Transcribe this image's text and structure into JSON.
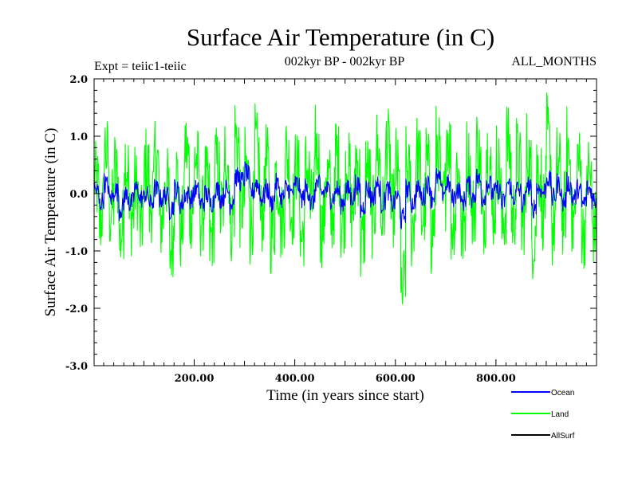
{
  "chart_data": {
    "type": "line",
    "title": "Surface Air Temperature (in C)",
    "subtitle_left": "Expt = teiic1-teiic",
    "subtitle_center": "002kyr BP - 002kyr BP",
    "subtitle_right": "ALL_MONTHS",
    "xlabel": "Time (in years since start)",
    "ylabel": "Surface Air Temperature (in C)",
    "xlim": [
      1,
      1000
    ],
    "ylim": [
      -3.0,
      2.0
    ],
    "x_ticks": [
      200,
      400,
      600,
      800
    ],
    "x_tick_labels": [
      "200.00",
      "400.00",
      "600.00",
      "800.00"
    ],
    "y_ticks": [
      -3.0,
      -2.0,
      -1.0,
      0.0,
      1.0,
      2.0
    ],
    "y_tick_labels": [
      "-3.0",
      "-2.0",
      "-1.0",
      "0.0",
      "1.0",
      "2.0"
    ],
    "grid": false,
    "legend_position": "bottom-right",
    "series": [
      {
        "name": "Land",
        "color": "#00ff00",
        "step": 10,
        "typical_range": [
          -0.9,
          0.9
        ],
        "extremes": {
          "min": -2.0,
          "max": 1.6
        },
        "values": [
          0.3,
          -0.6,
          0.9,
          -0.4,
          0.5,
          -0.9,
          0.7,
          -0.5,
          0.2,
          -0.7,
          0.6,
          -0.3,
          0.8,
          -0.6,
          0.4,
          -1.1,
          0.5,
          -0.8,
          0.9,
          -0.4,
          0.7,
          -0.5,
          0.3,
          -0.9,
          0.6,
          -0.4,
          0.8,
          -0.7,
          1.1,
          -0.3,
          0.5,
          -0.6,
          0.9,
          -0.5,
          0.7,
          -0.8,
          0.4,
          -0.6,
          0.8,
          -0.4,
          0.6,
          -0.9,
          0.5,
          -0.3,
          0.9,
          -0.7,
          0.4,
          -0.5,
          0.8,
          -0.6,
          0.6,
          -0.4,
          0.7,
          -1.0,
          0.5,
          -0.6,
          0.9,
          -0.5,
          1.0,
          -0.4,
          0.6,
          -2.0,
          0.5,
          -0.7,
          0.8,
          -0.5,
          0.6,
          -0.8,
          0.9,
          -0.4,
          1.2,
          -0.6,
          0.5,
          -0.8,
          0.7,
          -0.5,
          0.9,
          -0.6,
          0.8,
          -0.4,
          0.6,
          -0.7,
          1.0,
          -0.5,
          0.7,
          -0.6,
          0.8,
          -0.9,
          0.5,
          -0.4,
          1.1,
          -0.7,
          0.6,
          -0.5,
          0.9,
          -0.6,
          0.7,
          -0.8,
          0.5,
          -0.6
        ]
      },
      {
        "name": "Ocean",
        "color": "#0000ff",
        "step": 10,
        "typical_range": [
          -0.4,
          0.4
        ],
        "values": [
          0.1,
          -0.2,
          0.2,
          -0.1,
          0.1,
          -0.3,
          0.0,
          -0.2,
          0.1,
          -0.1,
          0.0,
          -0.2,
          0.1,
          -0.1,
          0.0,
          -0.3,
          0.1,
          -0.2,
          0.0,
          -0.1,
          0.1,
          -0.2,
          0.0,
          -0.2,
          0.1,
          -0.1,
          0.1,
          -0.2,
          0.3,
          0.2,
          0.4,
          0.0,
          0.2,
          -0.1,
          0.1,
          -0.2,
          0.2,
          -0.1,
          0.1,
          0.0,
          0.2,
          -0.1,
          0.1,
          -0.2,
          0.2,
          0.0,
          0.1,
          -0.1,
          0.1,
          -0.2,
          0.1,
          -0.1,
          0.2,
          -0.3,
          0.1,
          -0.1,
          0.2,
          -0.2,
          0.1,
          -0.2,
          0.0,
          -0.5,
          0.1,
          -0.2,
          0.1,
          -0.1,
          0.2,
          -0.1,
          0.3,
          0.0,
          0.2,
          -0.1,
          0.1,
          -0.2,
          0.2,
          -0.1,
          0.3,
          -0.1,
          0.2,
          0.0,
          0.1,
          -0.2,
          0.2,
          -0.1,
          0.1,
          -0.2,
          0.2,
          -0.3,
          0.1,
          0.0,
          0.3,
          -0.1,
          0.2,
          -0.2,
          0.2,
          -0.1,
          0.1,
          -0.2,
          0.1,
          -0.1
        ]
      },
      {
        "name": "AllSurf",
        "color": "#000000",
        "values": []
      }
    ]
  }
}
